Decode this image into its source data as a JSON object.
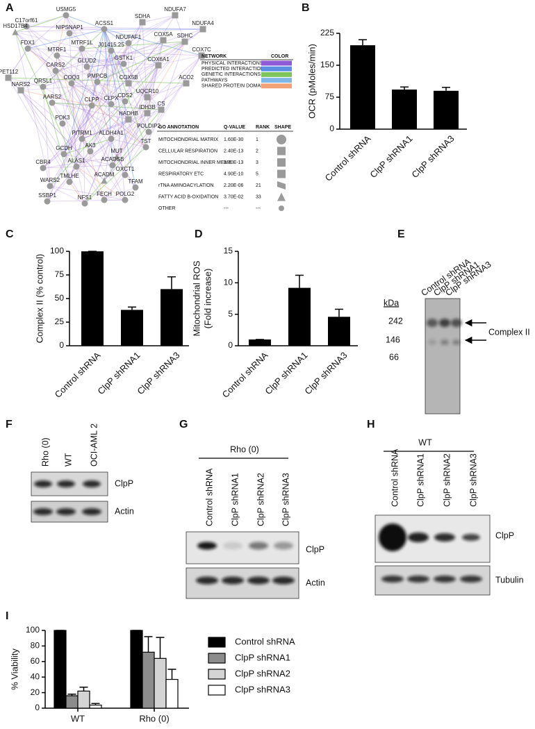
{
  "panel_labels": [
    "A",
    "B",
    "C",
    "D",
    "E",
    "F",
    "G",
    "H",
    "I"
  ],
  "network": {
    "nodes": [
      "USMG5",
      "C17orf61",
      "HSD17B4",
      "NIPSNAP1",
      "ACSS1",
      "FDX1",
      "MTRF1",
      "MTRF1L",
      "J01415.25",
      "NDUFA7",
      "NDUFA4",
      "SDHA",
      "SDHC",
      "NDUFAF1",
      "COX5A",
      "COX7C",
      "PET112",
      "CARS2",
      "GLUD2",
      "GSTK1",
      "COX6A1",
      "NARS2",
      "QRSL1",
      "COQ3",
      "PMPCB",
      "COX5B",
      "UQCR10",
      "ACO2",
      "AARS2",
      "CDS2",
      "CLPP",
      "CLPX",
      "CS",
      "IDH3B",
      "PDK3",
      "HADHB",
      "PITRM1",
      "ALDH4A1",
      "POLDIP2",
      "AK3",
      "GCDH",
      "MUT",
      "TST",
      "CBR4",
      "ALAS1",
      "ACADSB",
      "OXCT1",
      "WARS2",
      "TMLHE",
      "ACADM",
      "TFAM",
      "SSBP1",
      "NFS1",
      "FECH",
      "POLG2"
    ],
    "legend": {
      "headers": [
        "NETWORK",
        "COLOR"
      ],
      "items": [
        {
          "name": "PHYSICAL INTERACTIONS",
          "color": "#8e5ad6"
        },
        {
          "name": "PREDICTED INTERACTIONS",
          "color": "#5a8fe3"
        },
        {
          "name": "GENETIC INTERACTIONS",
          "color": "#7dc45a"
        },
        {
          "name": "PATHWAYS",
          "color": "#7fb8e8"
        },
        {
          "name": "SHARED PROTEIN DOMAINS",
          "color": "#f2a277"
        }
      ]
    },
    "go_table": {
      "headers": [
        "GO ANNOTATION",
        "Q-VALUE",
        "RANK",
        "SHAPE"
      ],
      "rows": [
        [
          "MITOCHONDRIAL MATRIX",
          "1.60E-30",
          "1"
        ],
        [
          "CELLULAR RESPIRATION",
          "2.40E-13",
          "2"
        ],
        [
          "MITOCHONDRIAL INNER MEMB",
          "3.70E-13",
          "3"
        ],
        [
          "RESPIRATORY ETC",
          "4.90E-10",
          "5"
        ],
        [
          "rTNA AMINOACYLATION",
          "2.20E-06",
          "21"
        ],
        [
          "FATTY ACID B-OXIDATION",
          "3.70E-02",
          "33"
        ],
        [
          "OTHER",
          "---",
          "---"
        ]
      ]
    }
  },
  "chart_data": [
    {
      "type": "bar",
      "y_label": [
        "OCR (pMoles/min)"
      ],
      "categories": [
        "Control shRNA",
        "ClpP shRNA1",
        "ClpP shRNA3"
      ],
      "values": [
        197,
        93,
        90
      ],
      "errors": [
        13,
        6,
        8
      ],
      "color": "#000000",
      "ylim": [
        0,
        225
      ],
      "yticks": [
        0,
        75,
        150,
        225
      ]
    },
    {
      "type": "bar",
      "y_label": [
        "Complex II (% control)"
      ],
      "categories": [
        "Control shRNA",
        "ClpP shRNA1",
        "ClpP shRNA3"
      ],
      "values": [
        100,
        38,
        60
      ],
      "errors": [
        0,
        3,
        13
      ],
      "color": "#000000",
      "ylim": [
        0,
        100
      ],
      "yticks": [
        0,
        25,
        50,
        75,
        100
      ]
    },
    {
      "type": "bar",
      "y_label": [
        "Mitochondrial ROS",
        "(Fold increase)"
      ],
      "categories": [
        "Control shRNA",
        "ClpP shRNA1",
        "ClpP shRNA3"
      ],
      "values": [
        1,
        9.2,
        4.6
      ],
      "errors": [
        0,
        2,
        1.2
      ],
      "color": "#000000",
      "ylim": [
        0,
        15
      ],
      "yticks": [
        0,
        5,
        10,
        15
      ]
    },
    {
      "type": "grouped_bar",
      "y_label": [
        "% Viability"
      ],
      "categories": [
        "WT",
        "Rho (0)"
      ],
      "series": [
        {
          "name": "Control shRNA",
          "color": "#000000",
          "values": [
            100,
            100
          ],
          "errors": [
            0,
            0
          ]
        },
        {
          "name": "ClpP shRNA1",
          "color": "#8c8c8c",
          "values": [
            16,
            72
          ],
          "errors": [
            2,
            20
          ]
        },
        {
          "name": "ClpP shRNA2",
          "color": "#d4d4d4",
          "values": [
            22,
            64
          ],
          "errors": [
            5,
            27
          ]
        },
        {
          "name": "ClpP shRNA3",
          "color": "#ffffff",
          "values": [
            4,
            37
          ],
          "errors": [
            2,
            13
          ]
        }
      ],
      "ylim": [
        0,
        100
      ],
      "yticks": [
        0,
        20,
        40,
        60,
        80,
        100
      ]
    }
  ],
  "blots": {
    "E": {
      "lanes": [
        "Control shRNA",
        "ClpP shRNA1",
        "ClpP shRNA3"
      ],
      "unit": "kDa",
      "markers": [
        "242",
        "146",
        "66"
      ],
      "band_label": "Complex II"
    },
    "F": {
      "lanes": [
        "Rho (0)",
        "WT",
        "OCI-AML 2"
      ],
      "bands": [
        "ClpP",
        "Actin"
      ]
    },
    "G": {
      "header": "Rho (0)",
      "lanes": [
        "Control shRNA",
        "ClpP shRNA1",
        "ClpP shRNA2",
        "ClpP shRNA3"
      ],
      "bands": [
        "ClpP",
        "Actin"
      ]
    },
    "H": {
      "header": "WT",
      "lanes": [
        "Control shRNA",
        "ClpP shRNA1",
        "ClpP shRNA2",
        "ClpP shRNA3"
      ],
      "bands": [
        "ClpP",
        "Tubulin"
      ]
    }
  }
}
